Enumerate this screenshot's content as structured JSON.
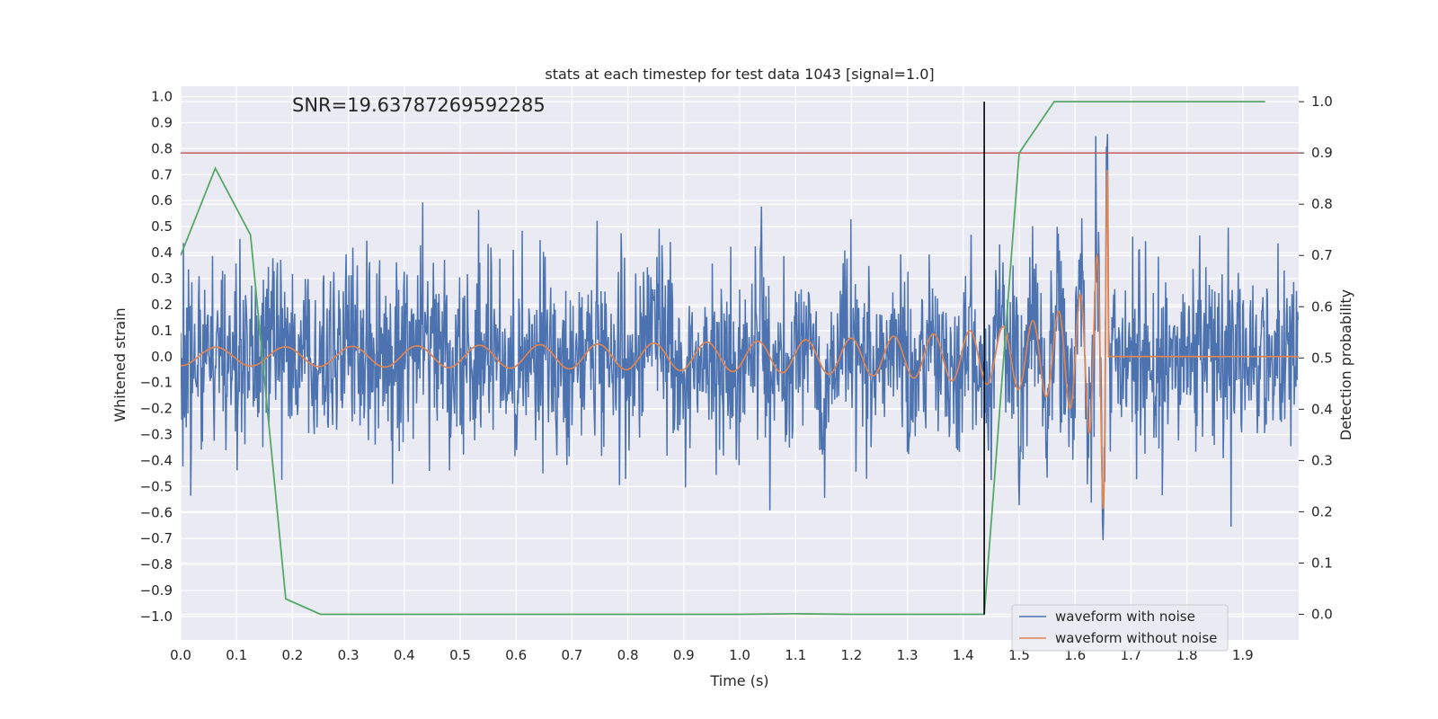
{
  "chart_data": {
    "type": "line",
    "title": "stats at each timestep for test data 1043 [signal=1.0]",
    "annotation": "SNR=19.63787269592285",
    "xlabel": "Time (s)",
    "ylabel": "Whitened strain",
    "y2label": "Detection probability",
    "xlim": [
      0.0,
      2.0
    ],
    "ylim": [
      -1.09,
      1.04
    ],
    "y2lim": [
      -0.05,
      1.03
    ],
    "x_ticks": [
      "0.0",
      "0.1",
      "0.2",
      "0.3",
      "0.4",
      "0.5",
      "0.6",
      "0.7",
      "0.8",
      "0.9",
      "1.0",
      "1.1",
      "1.2",
      "1.3",
      "1.4",
      "1.5",
      "1.6",
      "1.7",
      "1.8",
      "1.9"
    ],
    "y_ticks": [
      "1.0",
      "0.9",
      "0.8",
      "0.7",
      "0.6",
      "0.5",
      "0.4",
      "0.3",
      "0.2",
      "0.1",
      "0.0",
      "−0.1",
      "−0.2",
      "−0.3",
      "−0.4",
      "−0.5",
      "−0.6",
      "−0.7",
      "−0.8",
      "−0.9",
      "−1.0"
    ],
    "y2_ticks": [
      "1.0",
      "0.9",
      "0.8",
      "0.7",
      "0.6",
      "0.5",
      "0.4",
      "0.3",
      "0.2",
      "0.1",
      "0.0"
    ],
    "grid": true,
    "legend_position": "bottom-right",
    "series": [
      {
        "name": "waveform with noise",
        "color": "#4c72b0",
        "description": "dense noisy strain series, amplitude up to about ±0.9"
      },
      {
        "name": "waveform without noise",
        "color": "#dd8452",
        "description": "chirp signal ending near 1.66 s, peak about 0.7"
      }
    ],
    "detection_probability": {
      "color": "#55a868",
      "x": [
        0.0,
        0.062,
        0.125,
        0.188,
        0.25,
        0.3,
        0.5,
        1.0,
        1.1,
        1.2,
        1.4375,
        1.5,
        1.5625,
        1.625,
        1.6875,
        1.75,
        1.8125,
        1.875,
        1.94
      ],
      "y": [
        0.7,
        0.87,
        0.74,
        0.03,
        0.0,
        0.0,
        0.0,
        0.0,
        0.001,
        0.0,
        0.0,
        0.9,
        1.0,
        1.0,
        1.0,
        1.0,
        1.0,
        1.0,
        1.0
      ]
    },
    "threshold": {
      "y2": 0.9,
      "color": "#c44e52"
    },
    "marker_line": {
      "x": 1.4375,
      "color": "#000000"
    }
  }
}
